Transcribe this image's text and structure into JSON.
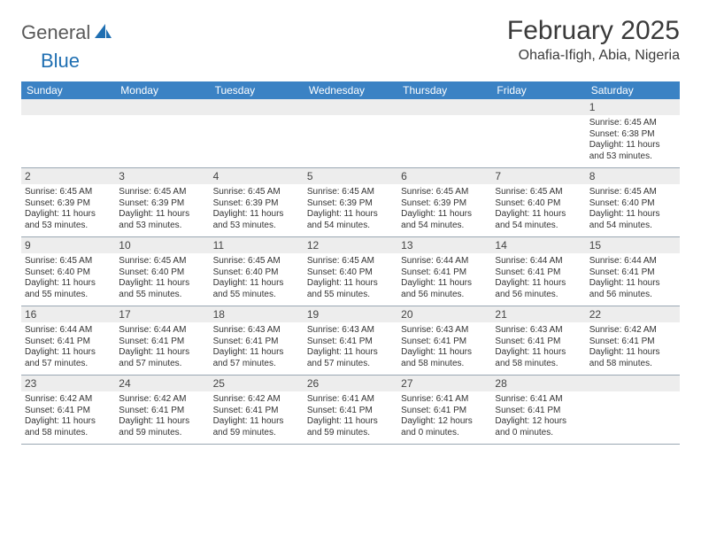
{
  "logo": {
    "word1": "General",
    "word2": "Blue"
  },
  "title": "February 2025",
  "location": "Ohafia-Ifigh, Abia, Nigeria",
  "colors": {
    "header_bg": "#3b82c4",
    "header_text": "#ffffff",
    "daynum_bg": "#ededed",
    "row_divider": "#9aa7b3",
    "logo_gray": "#595959",
    "logo_blue": "#1f6fb2",
    "body_text": "#333333"
  },
  "dow": [
    "Sunday",
    "Monday",
    "Tuesday",
    "Wednesday",
    "Thursday",
    "Friday",
    "Saturday"
  ],
  "weeks": [
    [
      null,
      null,
      null,
      null,
      null,
      null,
      {
        "n": "1",
        "sr": "6:45 AM",
        "ss": "6:38 PM",
        "dl": "11 hours and 53 minutes."
      }
    ],
    [
      {
        "n": "2",
        "sr": "6:45 AM",
        "ss": "6:39 PM",
        "dl": "11 hours and 53 minutes."
      },
      {
        "n": "3",
        "sr": "6:45 AM",
        "ss": "6:39 PM",
        "dl": "11 hours and 53 minutes."
      },
      {
        "n": "4",
        "sr": "6:45 AM",
        "ss": "6:39 PM",
        "dl": "11 hours and 53 minutes."
      },
      {
        "n": "5",
        "sr": "6:45 AM",
        "ss": "6:39 PM",
        "dl": "11 hours and 54 minutes."
      },
      {
        "n": "6",
        "sr": "6:45 AM",
        "ss": "6:39 PM",
        "dl": "11 hours and 54 minutes."
      },
      {
        "n": "7",
        "sr": "6:45 AM",
        "ss": "6:40 PM",
        "dl": "11 hours and 54 minutes."
      },
      {
        "n": "8",
        "sr": "6:45 AM",
        "ss": "6:40 PM",
        "dl": "11 hours and 54 minutes."
      }
    ],
    [
      {
        "n": "9",
        "sr": "6:45 AM",
        "ss": "6:40 PM",
        "dl": "11 hours and 55 minutes."
      },
      {
        "n": "10",
        "sr": "6:45 AM",
        "ss": "6:40 PM",
        "dl": "11 hours and 55 minutes."
      },
      {
        "n": "11",
        "sr": "6:45 AM",
        "ss": "6:40 PM",
        "dl": "11 hours and 55 minutes."
      },
      {
        "n": "12",
        "sr": "6:45 AM",
        "ss": "6:40 PM",
        "dl": "11 hours and 55 minutes."
      },
      {
        "n": "13",
        "sr": "6:44 AM",
        "ss": "6:41 PM",
        "dl": "11 hours and 56 minutes."
      },
      {
        "n": "14",
        "sr": "6:44 AM",
        "ss": "6:41 PM",
        "dl": "11 hours and 56 minutes."
      },
      {
        "n": "15",
        "sr": "6:44 AM",
        "ss": "6:41 PM",
        "dl": "11 hours and 56 minutes."
      }
    ],
    [
      {
        "n": "16",
        "sr": "6:44 AM",
        "ss": "6:41 PM",
        "dl": "11 hours and 57 minutes."
      },
      {
        "n": "17",
        "sr": "6:44 AM",
        "ss": "6:41 PM",
        "dl": "11 hours and 57 minutes."
      },
      {
        "n": "18",
        "sr": "6:43 AM",
        "ss": "6:41 PM",
        "dl": "11 hours and 57 minutes."
      },
      {
        "n": "19",
        "sr": "6:43 AM",
        "ss": "6:41 PM",
        "dl": "11 hours and 57 minutes."
      },
      {
        "n": "20",
        "sr": "6:43 AM",
        "ss": "6:41 PM",
        "dl": "11 hours and 58 minutes."
      },
      {
        "n": "21",
        "sr": "6:43 AM",
        "ss": "6:41 PM",
        "dl": "11 hours and 58 minutes."
      },
      {
        "n": "22",
        "sr": "6:42 AM",
        "ss": "6:41 PM",
        "dl": "11 hours and 58 minutes."
      }
    ],
    [
      {
        "n": "23",
        "sr": "6:42 AM",
        "ss": "6:41 PM",
        "dl": "11 hours and 58 minutes."
      },
      {
        "n": "24",
        "sr": "6:42 AM",
        "ss": "6:41 PM",
        "dl": "11 hours and 59 minutes."
      },
      {
        "n": "25",
        "sr": "6:42 AM",
        "ss": "6:41 PM",
        "dl": "11 hours and 59 minutes."
      },
      {
        "n": "26",
        "sr": "6:41 AM",
        "ss": "6:41 PM",
        "dl": "11 hours and 59 minutes."
      },
      {
        "n": "27",
        "sr": "6:41 AM",
        "ss": "6:41 PM",
        "dl": "12 hours and 0 minutes."
      },
      {
        "n": "28",
        "sr": "6:41 AM",
        "ss": "6:41 PM",
        "dl": "12 hours and 0 minutes."
      },
      null
    ]
  ],
  "labels": {
    "sunrise": "Sunrise:",
    "sunset": "Sunset:",
    "daylight": "Daylight:"
  }
}
